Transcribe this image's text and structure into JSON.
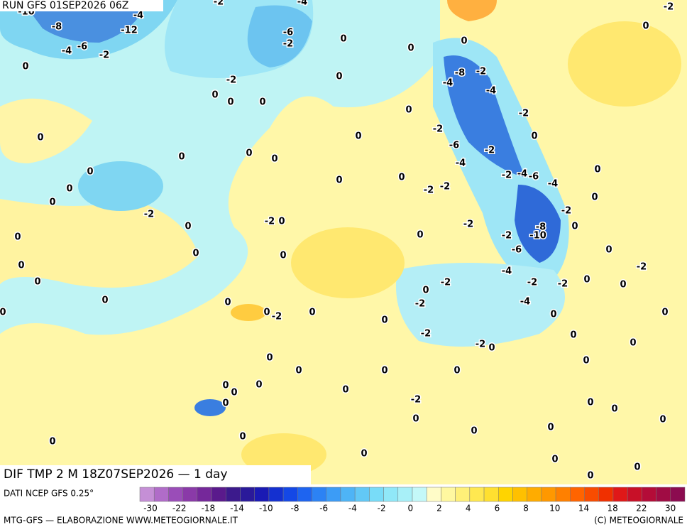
{
  "header": {
    "run": "RUN GFS 01SEP2026 06Z"
  },
  "map": {
    "labels": [
      -10,
      -8,
      -4,
      -12,
      -4,
      -6,
      -2,
      0,
      -2,
      -4,
      -6,
      -2,
      0,
      0,
      0,
      -2,
      0,
      -8,
      -2,
      -4,
      -4,
      0,
      -2,
      0,
      0,
      0,
      0,
      -2,
      0,
      0,
      -2,
      0,
      -6,
      -2,
      0,
      0,
      0,
      -4,
      0,
      0,
      0,
      0,
      -2,
      -4,
      -6,
      -2,
      -2,
      0,
      -4,
      0,
      0,
      -2,
      -2,
      -2,
      0,
      0,
      -2,
      -8,
      0,
      0,
      0,
      -2,
      -10,
      0,
      0,
      -6,
      0,
      0,
      -4,
      -2,
      0,
      -2,
      -2,
      -2,
      0,
      0,
      0,
      0,
      0,
      -2,
      -4,
      0,
      -2,
      0,
      0,
      0,
      0,
      0,
      -2,
      -2,
      0,
      0,
      0,
      0,
      0,
      0,
      0,
      0,
      0,
      0,
      0,
      0,
      -2,
      0,
      0,
      0,
      0,
      0,
      0,
      0,
      0,
      0,
      0,
      0,
      0,
      0
    ]
  },
  "footer": {
    "title": "DIF TMP 2 M 18Z07SEP2026 — 1 day",
    "source": "DATI NCEP GFS 0.25°",
    "credit": "MTG-GFS — ELABORAZIONE WWW.METEOGIORNALE.IT",
    "copyright": "(C) METEOGIORNALE"
  },
  "colorbar": {
    "colors": [
      "#c58fd6",
      "#b06cc8",
      "#9a4db8",
      "#8a3aa8",
      "#75289a",
      "#5a1a8c",
      "#3c1a8c",
      "#2a1a9a",
      "#1a1ab4",
      "#1430d0",
      "#1448e6",
      "#1e64f0",
      "#2c82f4",
      "#3c9cf6",
      "#4eb4f6",
      "#62c8f6",
      "#78dcf8",
      "#90e8f8",
      "#a8f0f8",
      "#c4f8f8",
      "#fffcc8",
      "#fff8a0",
      "#fff078",
      "#ffe850",
      "#ffe030",
      "#ffd400",
      "#ffc000",
      "#ffac00",
      "#ff9800",
      "#ff8000",
      "#ff6400",
      "#f84c00",
      "#f03000",
      "#e01818",
      "#c81028",
      "#b40c38",
      "#a00c44",
      "#8c0c50"
    ],
    "ticks": [
      -30,
      -22,
      -18,
      -14,
      -10,
      -8,
      -6,
      -4,
      -2,
      0,
      2,
      4,
      6,
      8,
      10,
      14,
      18,
      22,
      30
    ]
  }
}
